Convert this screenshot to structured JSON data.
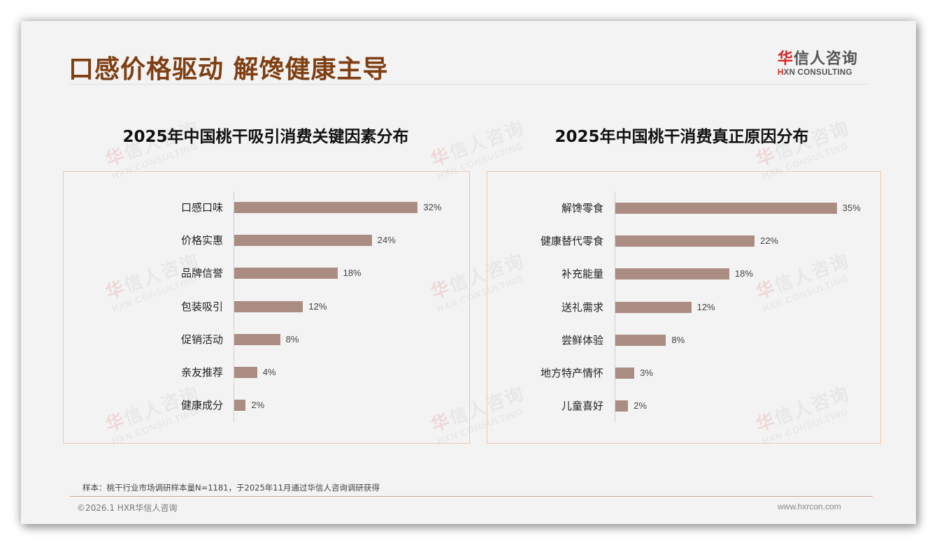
{
  "page": {
    "title": "口感价格驱动 解馋健康主导",
    "logo": {
      "cn_red": "华",
      "cn_rest": "信人咨询",
      "en_red": "H",
      "en_rest": "XN CONSULTING"
    },
    "watermark": {
      "cn_red": "华",
      "cn_rest": "信人咨询",
      "en": "HXN CONSULTING"
    },
    "note": "样本：桃干行业市场调研样本量N=1181，于2025年11月通过华信人咨询调研获得",
    "copyright": "©2026.1 HXR华信人咨询",
    "website": "www.hxrcon.com",
    "colors": {
      "title": "#7f3f13",
      "bar": "#ab8c82",
      "box_border": "#efc6a8",
      "logo_red": "#d62525"
    }
  },
  "chart_data": [
    {
      "type": "bar",
      "orientation": "horizontal",
      "title": "2025年中国桃干吸引消费关键因素分布",
      "categories": [
        "口感口味",
        "价格实惠",
        "品牌信誉",
        "包装吸引",
        "促销活动",
        "亲友推荐",
        "健康成分"
      ],
      "values": [
        32,
        24,
        18,
        12,
        8,
        4,
        2
      ],
      "labels": [
        "32%",
        "24%",
        "18%",
        "12%",
        "8%",
        "4%",
        "2%"
      ],
      "unit": "%",
      "xlabel": "",
      "ylabel": "",
      "grid": false,
      "legend": null
    },
    {
      "type": "bar",
      "orientation": "horizontal",
      "title": "2025年中国桃干消费真正原因分布",
      "categories": [
        "解馋零食",
        "健康替代零食",
        "补充能量",
        "送礼需求",
        "尝鲜体验",
        "地方特产情怀",
        "儿童喜好"
      ],
      "values": [
        35,
        22,
        18,
        12,
        8,
        3,
        2
      ],
      "labels": [
        "35%",
        "22%",
        "18%",
        "12%",
        "8%",
        "3%",
        "2%"
      ],
      "unit": "%",
      "xlabel": "",
      "ylabel": "",
      "grid": false,
      "legend": null
    }
  ]
}
